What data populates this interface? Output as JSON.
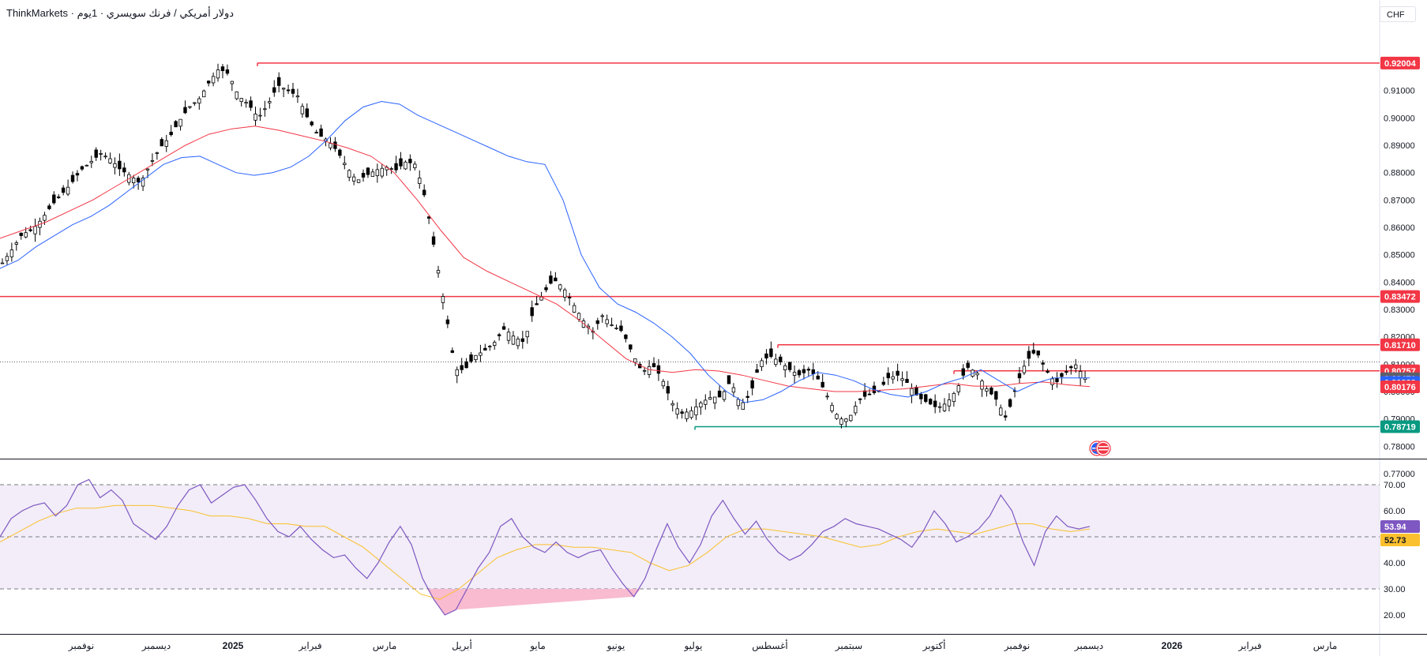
{
  "header": {
    "title": "ThinkMarkets · دولار أمريكي / فرنك سويسري · 1يوم",
    "currency_button": "CHF"
  },
  "colors": {
    "candle": "#000000",
    "ema_fast": "#2962ff",
    "ema_slow": "#f23645",
    "resistance": "#f23645",
    "support": "#089981",
    "rsi": "#7e57c2",
    "rsi_ma": "#fbc02d",
    "rsi_band_fill": "#ede7f6",
    "rsi_oversold_fill": "#f8bbd0",
    "last_price_bg": "#5d606b"
  },
  "chart_data": [
    {
      "type": "candlestick",
      "symbol": "USDCHF",
      "timeframe": "1D",
      "ylim": [
        0.77,
        0.925
      ],
      "y_ticks": [
        "0.92000",
        "0.91000",
        "0.90000",
        "0.89000",
        "0.88000",
        "0.87000",
        "0.86000",
        "0.85000",
        "0.84000",
        "0.83000",
        "0.82000",
        "0.81000",
        "0.80000",
        "0.79000",
        "0.78000",
        "0.77000"
      ],
      "x_ticks": [
        "نوفمبر",
        "ديسمبر",
        "2025",
        "فبراير",
        "مارس",
        "أبريل",
        "مايو",
        "يونيو",
        "يوليو",
        "أغسطس",
        "سبتمبر",
        "أكتوبر",
        "نوفمبر",
        "ديسمبر",
        "2026",
        "فبراير",
        "مارس"
      ],
      "close_path": [
        0.847,
        0.852,
        0.8575,
        0.859,
        0.863,
        0.868,
        0.872,
        0.876,
        0.881,
        0.884,
        0.887,
        0.885,
        0.881,
        0.879,
        0.876,
        0.883,
        0.889,
        0.893,
        0.899,
        0.904,
        0.907,
        0.913,
        0.918,
        0.916,
        0.908,
        0.905,
        0.9,
        0.905,
        0.912,
        0.91,
        0.908,
        0.9,
        0.894,
        0.892,
        0.888,
        0.882,
        0.877,
        0.879,
        0.881,
        0.882,
        0.881,
        0.884,
        0.883,
        0.87,
        0.85,
        0.83,
        0.808,
        0.808,
        0.813,
        0.815,
        0.818,
        0.823,
        0.82,
        0.818,
        0.83,
        0.836,
        0.841,
        0.838,
        0.832,
        0.826,
        0.822,
        0.828,
        0.824,
        0.822,
        0.814,
        0.807,
        0.81,
        0.805,
        0.796,
        0.792,
        0.793,
        0.796,
        0.798,
        0.798,
        0.804,
        0.795,
        0.799,
        0.811,
        0.813,
        0.811,
        0.808,
        0.806,
        0.808,
        0.804,
        0.797,
        0.79,
        0.79,
        0.797,
        0.799,
        0.8,
        0.805,
        0.806,
        0.803,
        0.798,
        0.796,
        0.794,
        0.796,
        0.801,
        0.809,
        0.807,
        0.801,
        0.797,
        0.79,
        0.802,
        0.811,
        0.815,
        0.808,
        0.803,
        0.807,
        0.81,
        0.805
      ],
      "ema_fast_path": [
        0.845,
        0.848,
        0.853,
        0.857,
        0.861,
        0.864,
        0.868,
        0.873,
        0.878,
        0.883,
        0.8855,
        0.886,
        0.883,
        0.88,
        0.879,
        0.88,
        0.882,
        0.886,
        0.892,
        0.899,
        0.904,
        0.906,
        0.905,
        0.901,
        0.898,
        0.895,
        0.892,
        0.889,
        0.886,
        0.884,
        0.883,
        0.87,
        0.85,
        0.838,
        0.832,
        0.829,
        0.825,
        0.82,
        0.814,
        0.806,
        0.8,
        0.796,
        0.797,
        0.8,
        0.804,
        0.807,
        0.806,
        0.804,
        0.801,
        0.799,
        0.798,
        0.8,
        0.803,
        0.805,
        0.808,
        0.804,
        0.8,
        0.803,
        0.805,
        0.805,
        0.805
      ],
      "ema_slow_path": [
        0.856,
        0.859,
        0.862,
        0.866,
        0.87,
        0.875,
        0.88,
        0.885,
        0.89,
        0.894,
        0.896,
        0.897,
        0.8955,
        0.8935,
        0.8915,
        0.889,
        0.886,
        0.88,
        0.87,
        0.859,
        0.849,
        0.844,
        0.84,
        0.836,
        0.832,
        0.826,
        0.819,
        0.812,
        0.808,
        0.807,
        0.808,
        0.8075,
        0.806,
        0.804,
        0.802,
        0.801,
        0.8,
        0.8,
        0.8005,
        0.801,
        0.802,
        0.803,
        0.802,
        0.802,
        0.803,
        0.8035,
        0.8025,
        0.8018
      ],
      "horizontal_levels": [
        {
          "price": 0.92004,
          "label": "0.92004",
          "color": "#f23645"
        },
        {
          "price": 0.83472,
          "label": "0.83472",
          "color": "#f23645"
        },
        {
          "price": 0.8171,
          "label": "0.81710",
          "color": "#f23645"
        },
        {
          "price": 0.80757,
          "label": "0.80757",
          "color": "#f23645"
        },
        {
          "price": 0.78719,
          "label": "0.78719",
          "color": "#089981"
        }
      ],
      "price_tags": [
        {
          "price": 0.80471,
          "label": "0.80471",
          "color": "#5d606b"
        },
        {
          "price": 0.80333,
          "label": "0.80333",
          "color": "#2962ff"
        },
        {
          "price": 0.80176,
          "label": "0.80176",
          "color": "#f23645"
        }
      ]
    },
    {
      "type": "line",
      "indicator": "RSI",
      "ylim": [
        15,
        75
      ],
      "y_ticks": [
        "70.00",
        "60.00",
        "50.00",
        "40.00",
        "30.00",
        "20.00"
      ],
      "band_levels": [
        70,
        50,
        30
      ],
      "rsi_path": [
        50,
        57,
        60,
        62,
        63,
        58,
        62,
        70,
        72,
        65,
        68,
        64,
        55,
        52,
        49,
        54,
        62,
        68,
        70,
        63,
        66,
        69,
        70,
        64,
        57,
        52,
        50,
        54,
        49,
        45,
        42,
        43,
        38,
        34,
        40,
        48,
        54,
        47,
        34,
        26,
        20,
        22,
        30,
        38,
        44,
        54,
        57,
        50,
        46,
        44,
        48,
        44,
        42,
        44,
        45,
        38,
        32,
        27,
        34,
        45,
        55,
        46,
        40,
        47,
        58,
        64,
        57,
        51,
        56,
        49,
        44,
        41,
        43,
        47,
        52,
        54,
        57,
        55,
        54,
        53,
        51,
        49,
        46,
        52,
        60,
        55,
        48,
        50,
        53,
        58,
        66,
        60,
        48,
        39,
        52,
        58,
        54,
        53,
        54
      ],
      "rsi_ma_path": [
        48,
        52,
        56,
        59,
        61,
        61,
        62,
        62,
        62,
        61,
        60,
        58,
        58,
        57,
        55,
        55,
        54,
        54,
        50,
        46,
        40,
        34,
        28,
        26,
        30,
        36,
        42,
        45,
        47,
        47,
        46,
        46,
        45,
        44,
        40,
        37,
        39,
        44,
        50,
        53,
        53,
        52,
        51,
        50,
        48,
        46,
        47,
        50,
        52,
        53,
        52,
        51,
        53,
        55,
        55,
        53,
        52,
        53
      ],
      "last_values": [
        {
          "label": "53.94",
          "color": "#7e57c2"
        },
        {
          "label": "52.73",
          "color": "#fbc02d"
        }
      ]
    }
  ]
}
